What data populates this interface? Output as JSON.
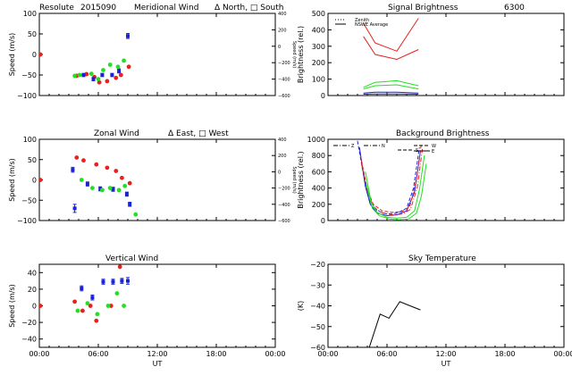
{
  "colors": {
    "red": "#e8201e",
    "blue": "#1a22d6",
    "green": "#22e022",
    "black": "#000000"
  },
  "chart_data": [
    {
      "type": "scatter",
      "id": "meridional",
      "title_parts": [
        "Resolute",
        "2015090",
        "Meridional Wind",
        "Δ North, □ South"
      ],
      "xlabel": "",
      "ylabel": "Speed (m/s)",
      "y2label": "Speed (m/s)",
      "xlim": [
        0,
        24
      ],
      "ylim": [
        -100,
        100
      ],
      "y2lim": [
        -600,
        400
      ],
      "xticks": [
        0,
        6,
        12,
        18,
        24
      ],
      "xtick_labels": [
        "",
        "",
        "",
        "",
        ""
      ],
      "yticks": [
        -100,
        -50,
        0,
        50,
        100
      ],
      "ytick_labels": [
        "−100",
        "−50",
        "0",
        "50",
        "100"
      ],
      "y2ticks": [
        -600,
        -400,
        -200,
        0,
        200,
        400
      ],
      "y2tick_labels": [
        "−600",
        "−400",
        "−200",
        "0",
        "200",
        "400"
      ],
      "series": [
        {
          "color": "red",
          "x": [
            0.1,
            3.8,
            4.8,
            5.6,
            6.1,
            6.9,
            7.8,
            8.3,
            9.1
          ],
          "y": [
            0,
            -52,
            -48,
            -55,
            -68,
            -65,
            -57,
            -50,
            -30
          ]
        },
        {
          "color": "blue",
          "x": [
            4.5,
            5.5,
            6.4,
            7.4,
            8.1,
            9.0
          ],
          "y": [
            -50,
            -60,
            -50,
            -50,
            -40,
            45
          ],
          "err": [
            4,
            4,
            4,
            4,
            5,
            6
          ]
        },
        {
          "color": "green",
          "x": [
            3.6,
            4.1,
            5.3,
            6.0,
            6.5,
            7.2,
            8.0,
            8.6
          ],
          "y": [
            -52,
            -50,
            -47,
            -60,
            -38,
            -25,
            -30,
            -15
          ]
        }
      ]
    },
    {
      "type": "line",
      "id": "signal",
      "title_parts": [
        "Signal Brightness",
        "6300"
      ],
      "xlabel": "",
      "ylabel": "Brightness (rel.)",
      "xlim": [
        0,
        24
      ],
      "ylim": [
        0,
        500
      ],
      "xticks": [
        0,
        6,
        12,
        18,
        24
      ],
      "xtick_labels": [
        "",
        "",
        "",
        "",
        ""
      ],
      "yticks": [
        0,
        100,
        200,
        300,
        400,
        500
      ],
      "ytick_labels": [
        "0",
        "100",
        "200",
        "300",
        "400",
        "500"
      ],
      "legend_items": [
        {
          "label": "Zenith",
          "style": "dotted"
        },
        {
          "label": "NSWE Average",
          "style": "solid"
        }
      ],
      "series": [
        {
          "color": "red",
          "x": [
            3.6,
            4.8,
            7.0,
            9.2
          ],
          "y": [
            440,
            320,
            270,
            470
          ]
        },
        {
          "color": "red",
          "x": [
            3.6,
            4.8,
            7.0,
            9.2
          ],
          "y": [
            360,
            250,
            220,
            280
          ]
        },
        {
          "color": "green",
          "x": [
            3.6,
            4.8,
            7.0,
            9.2
          ],
          "y": [
            50,
            80,
            90,
            60
          ]
        },
        {
          "color": "green",
          "x": [
            3.6,
            4.8,
            7.0,
            9.2
          ],
          "y": [
            40,
            60,
            65,
            40
          ]
        },
        {
          "color": "blue",
          "x": [
            3.6,
            4.8,
            7.0,
            9.2
          ],
          "y": [
            15,
            20,
            20,
            15
          ]
        },
        {
          "color": "blue",
          "x": [
            3.6,
            4.8,
            7.0,
            9.2
          ],
          "y": [
            8,
            10,
            10,
            8
          ]
        }
      ]
    },
    {
      "type": "scatter",
      "id": "zonal",
      "title_parts": [
        "Zonal Wind",
        "Δ East, □ West"
      ],
      "xlabel": "",
      "ylabel": "Speed (m/s)",
      "y2label": "Speed (m/s)",
      "xlim": [
        0,
        24
      ],
      "ylim": [
        -100,
        100
      ],
      "y2lim": [
        -600,
        400
      ],
      "xticks": [
        0,
        6,
        12,
        18,
        24
      ],
      "xtick_labels": [
        "",
        "",
        "",
        "",
        ""
      ],
      "yticks": [
        -100,
        -50,
        0,
        50,
        100
      ],
      "ytick_labels": [
        "−100",
        "−50",
        "0",
        "50",
        "100"
      ],
      "y2ticks": [
        -600,
        -400,
        -200,
        0,
        200,
        400
      ],
      "y2tick_labels": [
        "−600",
        "−400",
        "−200",
        "0",
        "200",
        "400"
      ],
      "series": [
        {
          "color": "red",
          "x": [
            0.1,
            3.8,
            4.5,
            5.8,
            6.9,
            7.8,
            8.4,
            9.2
          ],
          "y": [
            0,
            55,
            48,
            38,
            30,
            22,
            5,
            -8
          ]
        },
        {
          "color": "blue",
          "x": [
            3.4,
            3.6,
            4.9,
            6.2,
            7.5,
            8.9,
            9.2
          ],
          "y": [
            25,
            -70,
            -10,
            -22,
            -23,
            -35,
            -60
          ],
          "err": [
            6,
            10,
            5,
            5,
            5,
            5,
            5
          ]
        },
        {
          "color": "green",
          "x": [
            4.3,
            5.4,
            6.4,
            7.2,
            8.1,
            8.7,
            9.8
          ],
          "y": [
            0,
            -20,
            -25,
            -20,
            -25,
            -15,
            -85
          ]
        }
      ]
    },
    {
      "type": "line",
      "id": "background",
      "title_parts": [
        "Background Brightness"
      ],
      "xlabel": "",
      "ylabel": "Brightness (rel.)",
      "xlim": [
        0,
        24
      ],
      "ylim": [
        0,
        1000
      ],
      "xticks": [
        0,
        6,
        12,
        18,
        24
      ],
      "xtick_labels": [
        "",
        "",
        "",
        "",
        ""
      ],
      "yticks": [
        0,
        200,
        400,
        600,
        800,
        1000
      ],
      "ytick_labels": [
        "0",
        "200",
        "400",
        "600",
        "800",
        "1000"
      ],
      "legend_items": [
        {
          "label": "Z",
          "style": "dashdot"
        },
        {
          "label": "N",
          "style": "dashdot"
        },
        {
          "label": "S",
          "style": "dashed"
        },
        {
          "label": "W",
          "style": "dashed"
        },
        {
          "label": "E",
          "style": "solid"
        }
      ],
      "series": [
        {
          "color": "blue",
          "style": "dashed",
          "x": [
            3.0,
            3.7,
            4.2,
            5.0,
            6.0,
            7.0,
            8.0,
            8.7,
            9.3
          ],
          "y": [
            980,
            500,
            250,
            120,
            80,
            90,
            150,
            400,
            900
          ]
        },
        {
          "color": "blue",
          "style": "solid",
          "x": [
            3.2,
            3.8,
            4.3,
            5.0,
            6.0,
            7.0,
            8.0,
            8.8,
            9.4
          ],
          "y": [
            900,
            420,
            200,
            90,
            60,
            70,
            120,
            350,
            850
          ]
        },
        {
          "color": "red",
          "style": "dashed",
          "x": [
            3.3,
            4.0,
            4.6,
            5.5,
            6.5,
            7.5,
            8.3,
            9.0,
            9.5
          ],
          "y": [
            800,
            380,
            200,
            120,
            100,
            110,
            170,
            500,
            950
          ]
        },
        {
          "color": "red",
          "style": "dashdot",
          "x": [
            3.4,
            4.1,
            4.7,
            5.6,
            6.6,
            7.6,
            8.4,
            9.1,
            9.6
          ],
          "y": [
            700,
            320,
            160,
            90,
            70,
            80,
            140,
            420,
            880
          ]
        },
        {
          "color": "green",
          "style": "solid",
          "x": [
            3.8,
            4.4,
            5.0,
            6.0,
            7.0,
            8.0,
            8.8,
            9.3,
            9.8
          ],
          "y": [
            600,
            220,
            100,
            40,
            30,
            40,
            120,
            380,
            800
          ]
        },
        {
          "color": "green",
          "style": "solid",
          "x": [
            3.9,
            4.5,
            5.2,
            6.2,
            7.2,
            8.2,
            9.0,
            9.5,
            10.0
          ],
          "y": [
            450,
            150,
            60,
            20,
            10,
            20,
            90,
            300,
            700
          ]
        }
      ]
    },
    {
      "type": "scatter",
      "id": "vertical",
      "title_parts": [
        "Vertical Wind"
      ],
      "xlabel": "UT",
      "ylabel": "Speed (m/s)",
      "xlim": [
        0,
        24
      ],
      "ylim": [
        -50,
        50
      ],
      "xticks": [
        0,
        6,
        12,
        18,
        24
      ],
      "xtick_labels": [
        "00:00",
        "06:00",
        "12:00",
        "18:00",
        "00:00"
      ],
      "yticks": [
        -40,
        -20,
        0,
        20,
        40
      ],
      "ytick_labels": [
        "−40",
        "−20",
        "0",
        "20",
        "40"
      ],
      "series": [
        {
          "color": "red",
          "x": [
            0.1,
            3.6,
            4.4,
            5.2,
            5.8,
            7.3,
            8.2
          ],
          "y": [
            0,
            5,
            -6,
            0,
            -18,
            0,
            47
          ]
        },
        {
          "color": "blue",
          "x": [
            4.3,
            5.4,
            6.5,
            7.5,
            8.4,
            9.0
          ],
          "y": [
            21,
            10,
            29,
            29,
            30,
            30
          ],
          "err": [
            3,
            3,
            3,
            3,
            3,
            4
          ]
        },
        {
          "color": "green",
          "x": [
            3.9,
            4.9,
            5.9,
            7.0,
            7.9,
            8.6
          ],
          "y": [
            -6,
            3,
            -10,
            0,
            15,
            0
          ]
        }
      ]
    },
    {
      "type": "line",
      "id": "skytemp",
      "title_parts": [
        "Sky Temperature"
      ],
      "xlabel": "UT",
      "ylabel": "(K)",
      "xlim": [
        0,
        24
      ],
      "ylim": [
        -60,
        -20
      ],
      "xticks": [
        0,
        6,
        12,
        18,
        24
      ],
      "xtick_labels": [
        "00:00",
        "06:00",
        "12:00",
        "18:00",
        "00:00"
      ],
      "yticks": [
        -60,
        -50,
        -40,
        -30,
        -20
      ],
      "ytick_labels": [
        "−60",
        "−50",
        "−40",
        "−30",
        "−20"
      ],
      "series": [
        {
          "color": "black",
          "x": [
            4.2,
            5.3,
            6.2,
            7.3,
            9.4
          ],
          "y": [
            -60,
            -44,
            -46,
            -38,
            -42
          ]
        }
      ]
    }
  ]
}
